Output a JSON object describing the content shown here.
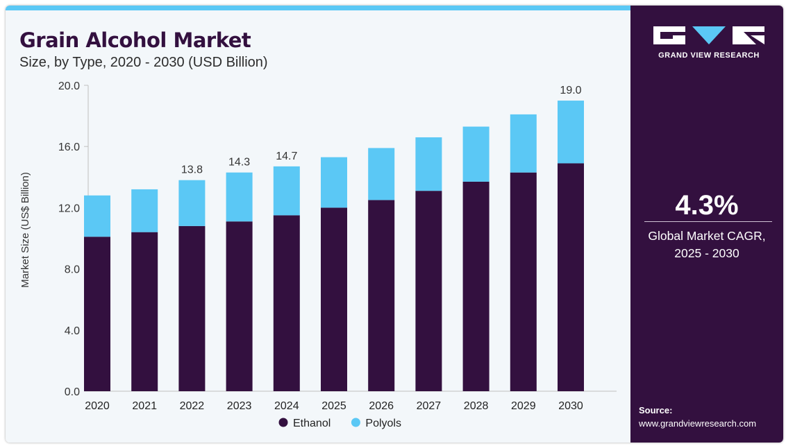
{
  "header": {
    "title": "Grain Alcohol Market",
    "subtitle": "Size, by Type, 2020 - 2030 (USD Billion)"
  },
  "brand": {
    "name": "GRAND VIEW RESEARCH",
    "logo_icon": "gvr-logo-icon",
    "accent_color": "#5bc8f5",
    "panel_color": "#33103f"
  },
  "sidebar": {
    "cagr_value": "4.3%",
    "cagr_label_line1": "Global Market CAGR,",
    "cagr_label_line2": "2025 - 2030",
    "source_label": "Source:",
    "source_url": "www.grandviewresearch.com"
  },
  "chart_data": {
    "type": "bar",
    "stacked": true,
    "categories": [
      "2020",
      "2021",
      "2022",
      "2023",
      "2024",
      "2025",
      "2026",
      "2027",
      "2028",
      "2029",
      "2030"
    ],
    "series": [
      {
        "name": "Ethanol",
        "color": "#33103f",
        "values": [
          10.1,
          10.4,
          10.8,
          11.1,
          11.5,
          12.0,
          12.5,
          13.1,
          13.7,
          14.3,
          14.9
        ]
      },
      {
        "name": "Polyols",
        "color": "#5bc8f5",
        "values": [
          2.7,
          2.8,
          3.0,
          3.2,
          3.2,
          3.3,
          3.4,
          3.5,
          3.6,
          3.8,
          4.1
        ]
      }
    ],
    "total_labels": [
      "",
      "",
      "13.8",
      "14.3",
      "14.7",
      "",
      "",
      "",
      "",
      "",
      "19.0"
    ],
    "ylabel": "Market Size (US$ Billion)",
    "xlabel": "",
    "ylim": [
      0,
      20
    ],
    "yticks": [
      "0.0",
      "4.0",
      "8.0",
      "12.0",
      "16.0",
      "20.0"
    ],
    "grid": false,
    "legend_position": "bottom"
  }
}
